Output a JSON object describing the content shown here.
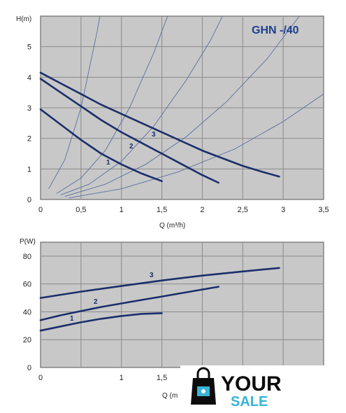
{
  "chart_data": [
    {
      "type": "line",
      "title": "GHN -/40",
      "xlabel": "Q (m³/h)",
      "ylabel": "H(m)",
      "xlim": [
        0,
        3.5
      ],
      "ylim": [
        0,
        6
      ],
      "xticks": [
        "0",
        "0,5",
        "1",
        "1,5",
        "2",
        "2,5",
        "3",
        "3,5"
      ],
      "yticks": [
        "0",
        "1",
        "2",
        "3",
        "4",
        "5"
      ],
      "grid": true,
      "series": [
        {
          "name": "1",
          "x": [
            0,
            0.25,
            0.5,
            0.75,
            1.0,
            1.25,
            1.5
          ],
          "y": [
            2.95,
            2.45,
            1.95,
            1.5,
            1.15,
            0.85,
            0.6
          ]
        },
        {
          "name": "2",
          "x": [
            0,
            0.25,
            0.5,
            0.75,
            1.0,
            1.25,
            1.5,
            1.75,
            2.0,
            2.2
          ],
          "y": [
            3.95,
            3.5,
            3.05,
            2.6,
            2.2,
            1.85,
            1.5,
            1.15,
            0.8,
            0.55
          ]
        },
        {
          "name": "3",
          "x": [
            0,
            0.25,
            0.5,
            0.75,
            1.0,
            1.25,
            1.5,
            1.75,
            2.0,
            2.25,
            2.5,
            2.75,
            2.95
          ],
          "y": [
            4.15,
            3.8,
            3.45,
            3.1,
            2.8,
            2.5,
            2.2,
            1.9,
            1.6,
            1.35,
            1.1,
            0.9,
            0.75
          ]
        }
      ],
      "system_curves": [
        {
          "x": [
            0.1,
            0.3,
            0.5,
            0.7,
            0.9,
            1.0
          ],
          "y": [
            0.35,
            1.3,
            3.0,
            5.5,
            8.5,
            10.0
          ]
        },
        {
          "x": [
            0.2,
            0.5,
            0.8,
            1.1,
            1.4,
            1.6,
            1.8
          ],
          "y": [
            0.2,
            0.7,
            1.6,
            3.0,
            4.8,
            6.2,
            7.8
          ]
        },
        {
          "x": [
            0.25,
            0.6,
            1.0,
            1.4,
            1.8,
            2.1,
            2.4
          ],
          "y": [
            0.15,
            0.5,
            1.25,
            2.4,
            3.9,
            5.2,
            6.8
          ]
        },
        {
          "x": [
            0.3,
            0.8,
            1.3,
            1.8,
            2.3,
            2.8,
            3.2
          ],
          "y": [
            0.1,
            0.5,
            1.15,
            2.05,
            3.2,
            4.6,
            6.0
          ]
        },
        {
          "x": [
            0.35,
            1.0,
            1.7,
            2.4,
            3.0,
            3.5
          ],
          "y": [
            0.05,
            0.35,
            0.9,
            1.65,
            2.55,
            3.45
          ]
        }
      ]
    },
    {
      "type": "line",
      "xlabel": "Q (m",
      "ylabel": "P(W)",
      "xlim": [
        0,
        3.5
      ],
      "ylim": [
        0,
        90
      ],
      "xticks": [
        "0",
        "1",
        "1,5"
      ],
      "yticks": [
        "0",
        "20",
        "40",
        "60",
        "80"
      ],
      "grid": true,
      "series": [
        {
          "name": "1",
          "x": [
            0,
            0.25,
            0.5,
            0.75,
            1.0,
            1.25,
            1.5
          ],
          "y": [
            26.5,
            29.5,
            32.5,
            35,
            37,
            38.5,
            39
          ]
        },
        {
          "name": "2",
          "x": [
            0,
            0.25,
            0.5,
            0.75,
            1.0,
            1.25,
            1.5,
            1.75,
            2.0,
            2.2
          ],
          "y": [
            34,
            37.5,
            40.5,
            43.5,
            46,
            48.5,
            51,
            53.5,
            56,
            58
          ]
        },
        {
          "name": "3",
          "x": [
            0,
            0.5,
            1.0,
            1.5,
            2.0,
            2.5,
            2.95
          ],
          "y": [
            50,
            54.5,
            58.5,
            62.5,
            66,
            69,
            71.5
          ]
        }
      ]
    }
  ],
  "labels": {
    "top_y_title": "H(m)",
    "top_x_title": "Q (m³/h)",
    "model": "GHN -/40",
    "bottom_y_title": "P(W)",
    "bottom_x_title": "Q (m",
    "top_curve_labels": [
      "1",
      "2",
      "3"
    ],
    "bottom_curve_labels": [
      "1",
      "2",
      "3"
    ]
  },
  "watermark": {
    "word1": "YOUR",
    "word2": "SALE"
  },
  "colors": {
    "plot_bg": "#c8c8c8",
    "grid": "#8a8a8a",
    "curve": "#1b2f6b",
    "system_curve": "#5a6f9f",
    "model_text": "#1f3f8f",
    "logo_teal": "#39b4d6"
  }
}
